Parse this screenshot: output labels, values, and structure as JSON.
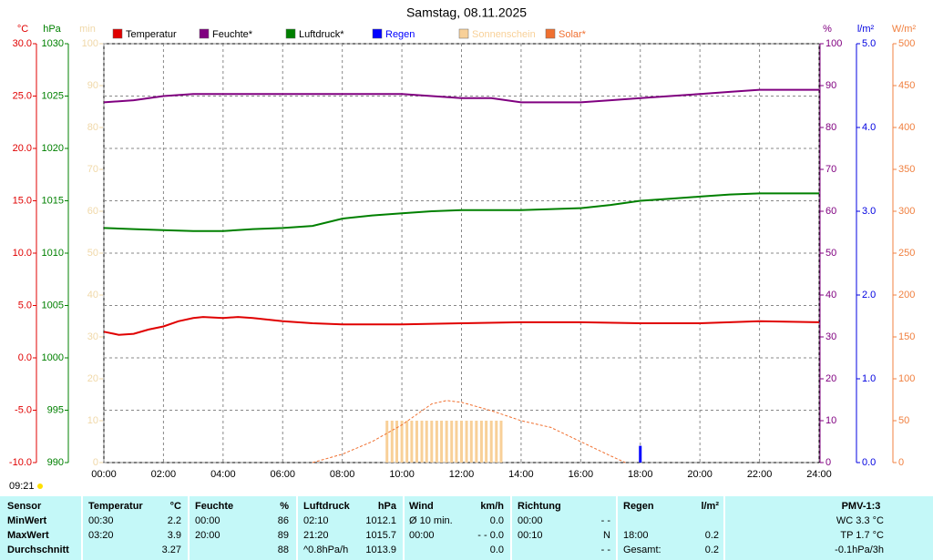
{
  "chart_data": {
    "type": "weather",
    "title": "Samstag, 08.11.2025",
    "time_label": "09:21",
    "xlim": [
      0,
      24
    ],
    "xticks": [
      {
        "value": 0,
        "label": "00:00"
      },
      {
        "value": 2,
        "label": "02:00"
      },
      {
        "value": 4,
        "label": "04:00"
      },
      {
        "value": 6,
        "label": "06:00"
      },
      {
        "value": 8,
        "label": "08:00"
      },
      {
        "value": 10,
        "label": "10:00"
      },
      {
        "value": 12,
        "label": "12:00"
      },
      {
        "value": 14,
        "label": "14:00"
      },
      {
        "value": 16,
        "label": "16:00"
      },
      {
        "value": 18,
        "label": "18:00"
      },
      {
        "value": 20,
        "label": "20:00"
      },
      {
        "value": 22,
        "label": "22:00"
      },
      {
        "value": 24,
        "label": "24:00"
      }
    ],
    "grid": true,
    "legend": "top",
    "axes": [
      {
        "label": "°C",
        "color": "#e00000",
        "lim": [
          -10,
          30
        ],
        "ticks": [
          {
            "value": -10,
            "label": "-10.0"
          },
          {
            "value": -5,
            "label": "-5.0"
          },
          {
            "value": 0,
            "label": "0.0"
          },
          {
            "value": 5,
            "label": "5.0"
          },
          {
            "value": 10,
            "label": "10.0"
          },
          {
            "value": 15,
            "label": "15.0"
          },
          {
            "value": 20,
            "label": "20.0"
          },
          {
            "value": 25,
            "label": "25.0"
          },
          {
            "value": 30,
            "label": "30.0"
          }
        ]
      },
      {
        "label": "hPa",
        "color": "#008000",
        "lim": [
          990,
          1030
        ],
        "ticks": [
          990,
          995,
          1000,
          1005,
          1010,
          1015,
          1020,
          1025,
          1030
        ]
      },
      {
        "label": "min",
        "color": "#f0d8a8",
        "lim": [
          0,
          100
        ],
        "ticks": [
          0,
          10,
          20,
          30,
          40,
          50,
          60,
          70,
          80,
          90,
          100
        ]
      },
      {
        "label": "%",
        "color": "#800080",
        "lim": [
          0,
          100
        ],
        "ticks": [
          0,
          10,
          20,
          30,
          40,
          50,
          60,
          70,
          80,
          90,
          100
        ]
      },
      {
        "label": "l/m²",
        "color": "#0000e0",
        "lim": [
          0,
          5
        ],
        "ticks": [
          {
            "value": 0,
            "label": "0.0"
          },
          {
            "value": 1,
            "label": "1.0"
          },
          {
            "value": 2,
            "label": "2.0"
          },
          {
            "value": 3,
            "label": "3.0"
          },
          {
            "value": 4,
            "label": "4.0"
          },
          {
            "value": 5,
            "label": "5.0"
          }
        ]
      },
      {
        "label": "W/m²",
        "color": "#f08040",
        "lim": [
          0,
          500
        ],
        "ticks": [
          0,
          50,
          100,
          150,
          200,
          250,
          300,
          350,
          400,
          450,
          500
        ]
      }
    ],
    "series": [
      {
        "name": "Temperatur",
        "color": "#e00000",
        "kind": "line",
        "axis": 0,
        "x": [
          0,
          0.5,
          1,
          1.5,
          2,
          2.5,
          3,
          3.33,
          4,
          4.5,
          5,
          6,
          7,
          8,
          10,
          12,
          14,
          16,
          18,
          20,
          22,
          24
        ],
        "values": [
          2.5,
          2.2,
          2.3,
          2.7,
          3.0,
          3.5,
          3.8,
          3.9,
          3.8,
          3.9,
          3.8,
          3.5,
          3.3,
          3.2,
          3.2,
          3.3,
          3.4,
          3.4,
          3.3,
          3.3,
          3.5,
          3.4
        ]
      },
      {
        "name": "Feuchte*",
        "color": "#800080",
        "kind": "line",
        "axis": 3,
        "x": [
          0,
          1,
          2,
          3,
          4,
          6,
          8,
          10,
          11,
          12,
          13,
          14,
          16,
          17,
          18,
          19,
          20,
          21,
          22,
          24
        ],
        "values": [
          86,
          86.5,
          87.5,
          88,
          88,
          88,
          88,
          88,
          87.5,
          87,
          87,
          86,
          86,
          86.5,
          87,
          87.5,
          88,
          88.5,
          89,
          89
        ]
      },
      {
        "name": "Luftdruck*",
        "color": "#008000",
        "kind": "line",
        "axis": 1,
        "x": [
          0,
          1,
          2,
          3,
          4,
          5,
          6,
          7,
          8,
          9,
          10,
          11,
          12,
          14,
          16,
          17,
          18,
          19,
          20,
          21,
          22,
          24
        ],
        "values": [
          1012.4,
          1012.3,
          1012.2,
          1012.1,
          1012.1,
          1012.3,
          1012.4,
          1012.6,
          1013.3,
          1013.6,
          1013.8,
          1014.0,
          1014.1,
          1014.1,
          1014.3,
          1014.6,
          1015.0,
          1015.2,
          1015.4,
          1015.6,
          1015.7,
          1015.7
        ]
      },
      {
        "name": "Regen",
        "color": "#0000ff",
        "kind": "bar",
        "axis": 4,
        "x": [
          18
        ],
        "values": [
          0.2
        ]
      },
      {
        "name": "Sonnenschein",
        "color": "#f8d098",
        "kind": "bar",
        "axis": 2,
        "x": [
          9.5,
          9.67,
          9.83,
          10,
          10.17,
          10.33,
          10.5,
          10.67,
          10.83,
          11,
          11.17,
          11.33,
          11.5,
          11.67,
          11.83,
          12,
          12.17,
          12.33,
          12.5,
          12.67,
          12.83,
          13,
          13.17,
          13.33
        ],
        "values": [
          10,
          10,
          10,
          10,
          10,
          10,
          10,
          10,
          10,
          10,
          10,
          10,
          10,
          10,
          10,
          10,
          10,
          10,
          10,
          10,
          10,
          10,
          10,
          10
        ]
      },
      {
        "name": "Solar*",
        "color": "#f07030",
        "kind": "dashed",
        "axis": 5,
        "x": [
          7,
          8,
          9,
          10,
          11,
          11.5,
          12,
          13,
          14,
          15,
          16,
          17,
          17.5
        ],
        "values": [
          0,
          10,
          25,
          45,
          70,
          74,
          72,
          62,
          50,
          42,
          25,
          8,
          0
        ]
      }
    ]
  },
  "table": {
    "header": {
      "label": "Sensor",
      "temp_time": "Temperatur",
      "temp": "°C",
      "hum_time": "Feuchte",
      "hum": "%",
      "press_time": "Luftdruck",
      "press": "hPa",
      "wind_label": "Wind",
      "wind": "km/h",
      "dir_time": "Richtung",
      "rain_time": "Regen",
      "rain": "l/m²",
      "pmv": "PMV-1:3"
    },
    "rows": [
      {
        "label": "MinWert",
        "temp_time": "00:30",
        "temp": "2.2",
        "hum_time": "00:00",
        "hum": "86",
        "press_time": "02:10",
        "press": "1012.1",
        "wind_label": "Ø 10 min.",
        "wind": "0.0",
        "dir_time": "00:00",
        "dir": "- -",
        "pmv": "WC 3.3 °C"
      },
      {
        "label": "MaxWert",
        "temp_time": "03:20",
        "temp": "3.9",
        "hum_time": "20:00",
        "hum": "89",
        "press_time": "21:20",
        "press": "1015.7",
        "wind_label": "00:00",
        "wind": "- - 0.0",
        "dir_time": "00:10",
        "dir": "N",
        "rain_time": "18:00",
        "rain": "0.2",
        "pmv": "TP 1.7 °C"
      },
      {
        "label": "Durchschnitt",
        "temp": "3.27",
        "hum": "88",
        "press_time": "^0.8hPa/h",
        "press": "1013.9",
        "wind": "0.0",
        "dir": "- -",
        "rain_time": "Gesamt:",
        "rain": "0.2",
        "pmv": "-0.1hPa/3h"
      }
    ]
  }
}
